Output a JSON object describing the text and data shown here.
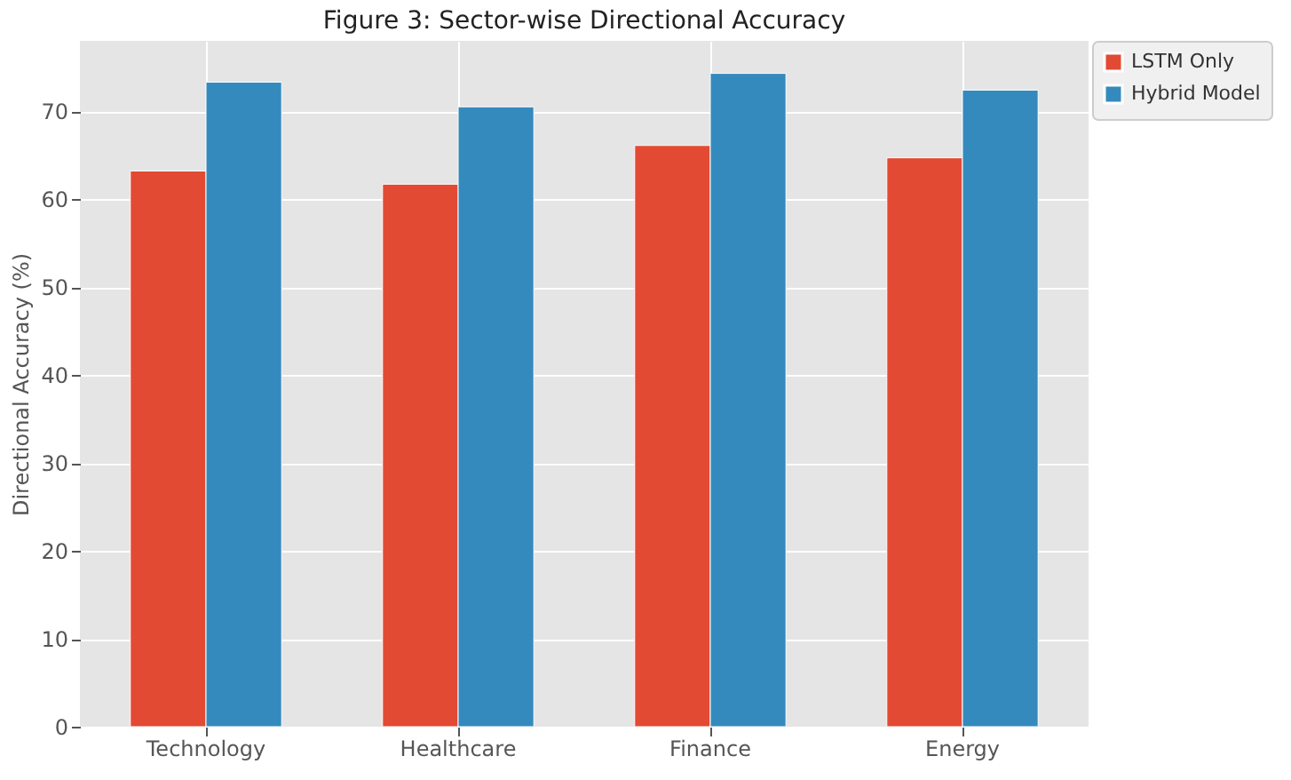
{
  "chart_data": {
    "type": "bar",
    "title": "Figure 3: Sector-wise Directional Accuracy",
    "ylabel": "Directional Accuracy (%)",
    "categories": [
      "Technology",
      "Healthcare",
      "Finance",
      "Energy"
    ],
    "series": [
      {
        "name": "LSTM Only",
        "color": "#e24a33",
        "values": [
          63.2,
          61.7,
          66.1,
          64.7
        ]
      },
      {
        "name": "Hybrid Model",
        "color": "#348abd",
        "values": [
          73.3,
          70.5,
          74.3,
          72.4
        ]
      }
    ],
    "ylim": [
      0,
      78
    ],
    "yticks": [
      0,
      10,
      20,
      30,
      40,
      50,
      60,
      70
    ],
    "grid": true,
    "legend": "right"
  }
}
